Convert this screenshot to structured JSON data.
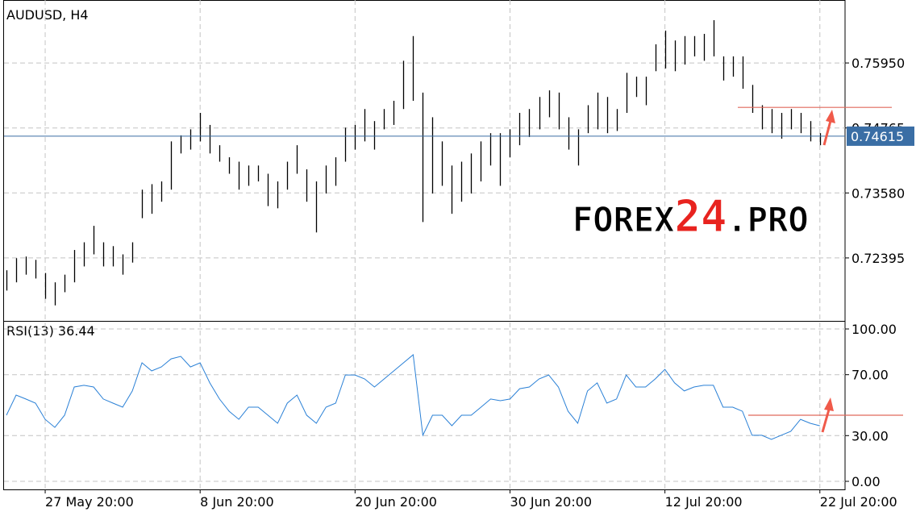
{
  "chart_data": [
    {
      "type": "ohlc",
      "title": "AUDUSD, H4",
      "color": "#000000",
      "xlim": [
        -0.25,
        86.6
      ],
      "ylim": [
        0.71247,
        0.77098
      ],
      "yticks": [
        {
          "value": 0.7595,
          "label": "0.75950"
        },
        {
          "value": 0.74765,
          "label": "0.74765"
        },
        {
          "value": 0.7358,
          "label": "0.73580"
        },
        {
          "value": 0.72395,
          "label": "0.72395"
        }
      ],
      "grid": true,
      "high": [
        0.7217,
        0.7239,
        0.7242,
        0.7236,
        0.7212,
        0.7195,
        0.7209,
        0.7254,
        0.7268,
        0.7298,
        0.7268,
        0.7261,
        0.7246,
        0.7268,
        0.7364,
        0.7374,
        0.7379,
        0.7452,
        0.7463,
        0.7474,
        0.7504,
        0.7482,
        0.7445,
        0.7423,
        0.7415,
        0.7408,
        0.7408,
        0.7393,
        0.7379,
        0.7415,
        0.7445,
        0.7401,
        0.7379,
        0.7408,
        0.7423,
        0.7477,
        0.7482,
        0.7511,
        0.7489,
        0.7511,
        0.7526,
        0.7599,
        0.7644,
        0.7541,
        0.7496,
        0.7452,
        0.7408,
        0.7415,
        0.743,
        0.7452,
        0.7467,
        0.7467,
        0.7474,
        0.7504,
        0.7511,
        0.7533,
        0.7545,
        0.7541,
        0.7496,
        0.7474,
        0.7518,
        0.7541,
        0.7533,
        0.7511,
        0.7577,
        0.757,
        0.757,
        0.7629,
        0.7654,
        0.7636,
        0.7644,
        0.7644,
        0.7648,
        0.7673,
        0.7607,
        0.7607,
        0.7607,
        0.7555,
        0.7518,
        0.7511,
        0.7504,
        0.7511,
        0.7504,
        0.7489,
        0.7467
      ],
      "low": [
        0.718,
        0.7195,
        0.7209,
        0.7202,
        0.7165,
        0.7153,
        0.7177,
        0.7195,
        0.7224,
        0.7246,
        0.7224,
        0.7224,
        0.7209,
        0.7231,
        0.7312,
        0.732,
        0.7342,
        0.7364,
        0.743,
        0.7437,
        0.7452,
        0.743,
        0.7415,
        0.7393,
        0.7364,
        0.7371,
        0.7379,
        0.7334,
        0.733,
        0.7364,
        0.7393,
        0.7342,
        0.7286,
        0.7357,
        0.7371,
        0.7415,
        0.7437,
        0.7452,
        0.7437,
        0.7474,
        0.7482,
        0.7511,
        0.7526,
        0.7305,
        0.7357,
        0.7371,
        0.732,
        0.7342,
        0.7357,
        0.7379,
        0.7408,
        0.7371,
        0.7423,
        0.7445,
        0.746,
        0.7474,
        0.7496,
        0.7474,
        0.7437,
        0.7408,
        0.7467,
        0.7474,
        0.7467,
        0.7471,
        0.7504,
        0.7533,
        0.7518,
        0.758,
        0.7585,
        0.758,
        0.7592,
        0.7607,
        0.7599,
        0.7607,
        0.7563,
        0.757,
        0.7548,
        0.7504,
        0.7474,
        0.7467,
        0.7457,
        0.7474,
        0.7467,
        0.7452,
        0.7445
      ],
      "current_price": {
        "value": 0.74615,
        "label": "0.74615",
        "color": "#3a6ea5"
      },
      "level": {
        "value": 0.7514,
        "color": "#e0695c"
      },
      "watermark": [
        {
          "text": "FOREX",
          "color": "#000000"
        },
        {
          "text": "24",
          "color": "#e8231f"
        },
        {
          "text": ".PRO",
          "color": "#000000"
        }
      ]
    },
    {
      "type": "line",
      "title": "RSI(13) 36.44",
      "color": "#2a80d6",
      "xlim": [
        -0.25,
        86.6
      ],
      "ylim": [
        -5.3,
        105.3
      ],
      "yticks": [
        {
          "value": 100,
          "label": "100.00"
        },
        {
          "value": 70,
          "label": "70.00"
        },
        {
          "value": 30,
          "label": "30.00"
        },
        {
          "value": 0,
          "label": "0.00"
        }
      ],
      "xticks": [
        {
          "value": 4,
          "label": "27 May 20:00"
        },
        {
          "value": 20,
          "label": "8 Jun 20:00"
        },
        {
          "value": 36,
          "label": "20 Jun 20:00"
        },
        {
          "value": 52,
          "label": "30 Jun 20:00"
        },
        {
          "value": 68,
          "label": "12 Jul 20:00"
        },
        {
          "value": 84,
          "label": "22 Jul 20:00"
        }
      ],
      "values": [
        43.4,
        56.6,
        54.0,
        51.3,
        40.7,
        35.4,
        43.4,
        61.9,
        63.0,
        61.9,
        54.0,
        51.3,
        48.7,
        59.3,
        77.8,
        72.5,
        75.1,
        80.4,
        82.0,
        75.1,
        77.8,
        64.6,
        54.0,
        46.0,
        40.7,
        48.7,
        48.7,
        43.4,
        38.1,
        51.3,
        56.6,
        43.4,
        38.1,
        48.7,
        51.3,
        69.8,
        69.8,
        67.2,
        61.9,
        67.2,
        72.5,
        77.8,
        83.1,
        30.2,
        43.4,
        43.4,
        36.5,
        43.4,
        43.4,
        48.7,
        54.0,
        52.9,
        54.0,
        60.8,
        61.9,
        67.2,
        69.8,
        61.9,
        46.0,
        38.1,
        59.3,
        64.6,
        51.3,
        54.0,
        69.8,
        61.9,
        61.9,
        67.2,
        73.5,
        64.6,
        59.3,
        61.9,
        63.0,
        63.0,
        48.7,
        48.7,
        46.0,
        30.2,
        30.2,
        27.5,
        30.2,
        32.8,
        40.7,
        38.1,
        36.44
      ],
      "level": {
        "value": 43.4,
        "color": "#e0695c"
      }
    }
  ]
}
